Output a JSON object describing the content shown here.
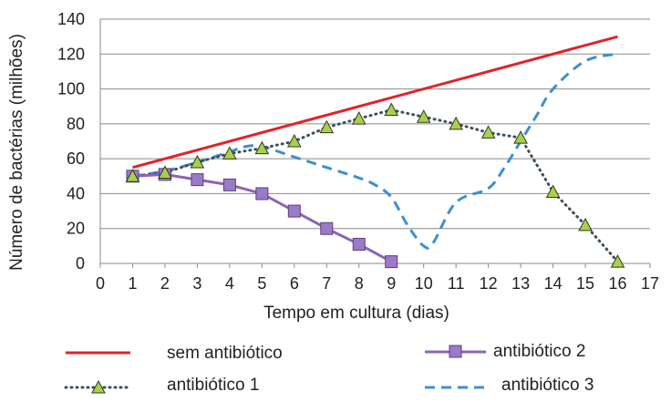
{
  "chart_data": {
    "type": "line",
    "xlabel": "Tempo em cultura (dias)",
    "ylabel": "Número de bactérias (milhões)",
    "xlim": [
      0,
      17
    ],
    "ylim": [
      0,
      140
    ],
    "xticks": [
      0,
      1,
      2,
      3,
      4,
      5,
      6,
      7,
      8,
      9,
      10,
      11,
      12,
      13,
      14,
      15,
      16,
      17
    ],
    "yticks": [
      0,
      20,
      40,
      60,
      80,
      100,
      120,
      140
    ],
    "grid": "horizontal",
    "legend_position": "bottom",
    "series": [
      {
        "name": "sem antibiótico",
        "color": "#e0232b",
        "style": "solid",
        "marker": "none",
        "x": [
          1,
          16
        ],
        "y": [
          55,
          130
        ]
      },
      {
        "name": "antibiótico 2",
        "color": "#8e63b7",
        "style": "solid",
        "marker": "square",
        "x": [
          1,
          2,
          3,
          4,
          5,
          6,
          7,
          8,
          9
        ],
        "y": [
          50,
          51,
          48,
          45,
          40,
          30,
          20,
          11,
          1
        ]
      },
      {
        "name": "antibiótico 1",
        "color": "#3e4f5c",
        "style": "dotted",
        "marker": "triangle",
        "x": [
          1,
          2,
          3,
          4,
          5,
          6,
          7,
          8,
          9,
          10,
          11,
          12,
          13,
          14,
          15,
          16
        ],
        "y": [
          50,
          52,
          58,
          63,
          66,
          70,
          78,
          83,
          88,
          84,
          80,
          75,
          72,
          41,
          22,
          1
        ]
      },
      {
        "name": "antibiótico 3",
        "color": "#3d8fd1",
        "style": "dashed",
        "marker": "none",
        "x": [
          1,
          2,
          3,
          4,
          4.5,
          5,
          6,
          7,
          8,
          8.5,
          9,
          9.5,
          10,
          10.3,
          11,
          12,
          12.5,
          13,
          13.5,
          14,
          15,
          16
        ],
        "y": [
          50,
          53,
          58,
          64,
          67,
          67,
          61,
          55,
          49,
          45,
          38,
          22,
          10,
          12,
          35,
          43,
          55,
          70,
          85,
          100,
          116,
          120
        ]
      }
    ]
  }
}
